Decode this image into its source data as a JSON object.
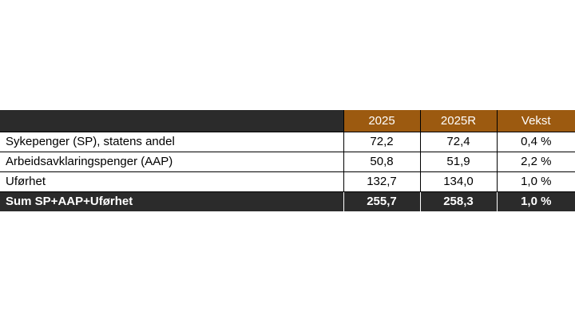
{
  "table": {
    "headers": [
      "",
      "2025",
      "2025R",
      "Vekst"
    ],
    "rows": [
      [
        "Sykepenger (SP), statens andel",
        "72,2",
        "72,4",
        "0,4 %"
      ],
      [
        "Arbeidsavklaringspenger (AAP)",
        "50,8",
        "51,9",
        "2,2 %"
      ],
      [
        "Uførhet",
        "132,7",
        "134,0",
        "1,0 %"
      ]
    ],
    "total": [
      "Sum SP+AAP+Uførhet",
      "255,7",
      "258,3",
      "1,0 %"
    ]
  },
  "colors": {
    "header_dark": "#2b2b2b",
    "header_accent": "#9c5a10"
  }
}
